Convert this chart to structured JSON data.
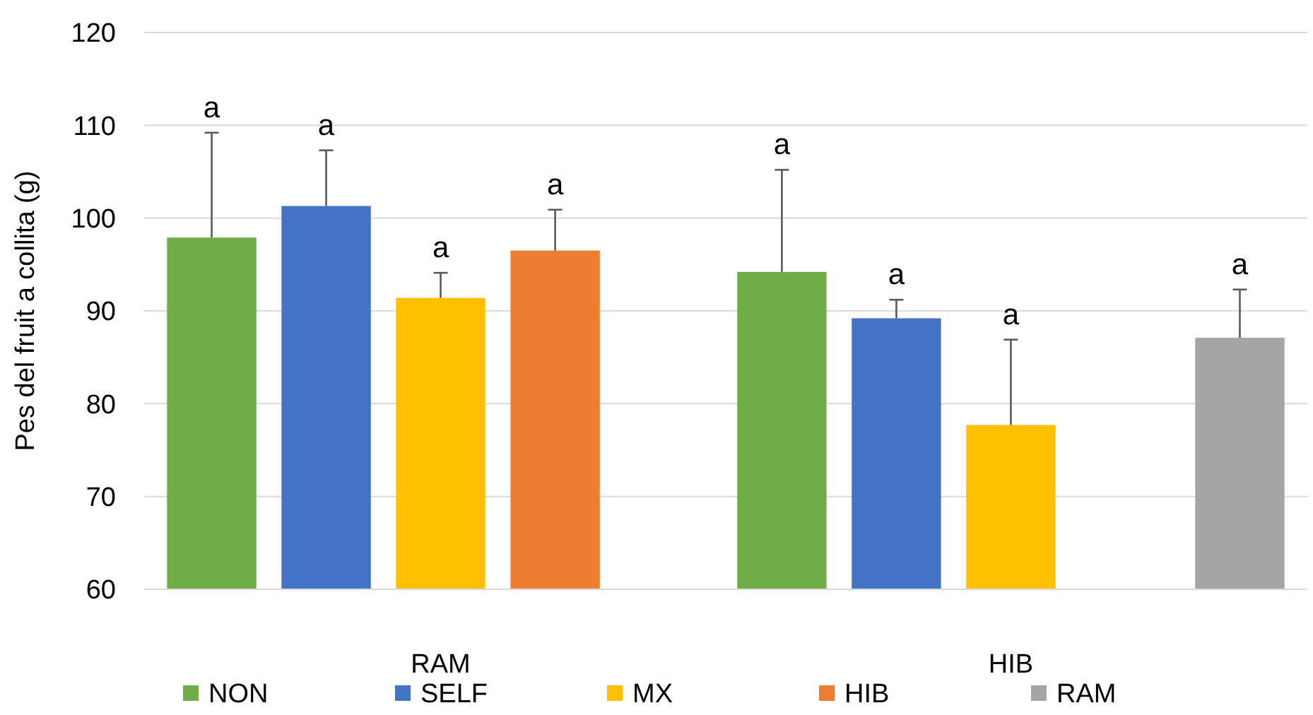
{
  "chart_data": {
    "type": "bar",
    "ylabel": "Pes del fruit a collita (g)",
    "categories": [
      "RAM",
      "HIB"
    ],
    "series": [
      {
        "name": "NON",
        "color": "#70ad47",
        "values": [
          97.9,
          94.2
        ],
        "errors": [
          [
            97.9,
            109.2
          ],
          [
            94.2,
            105.2
          ]
        ]
      },
      {
        "name": "SELF",
        "color": "#4472c4",
        "values": [
          101.3,
          89.2
        ],
        "errors": [
          [
            101.3,
            107.3
          ],
          [
            89.2,
            91.2
          ]
        ]
      },
      {
        "name": "MX",
        "color": "#ffc000",
        "values": [
          91.4,
          77.7
        ],
        "errors": [
          [
            91.4,
            94.1
          ],
          [
            77.7,
            86.9
          ]
        ]
      },
      {
        "name": "HIB",
        "color": "#ed7d31",
        "values": [
          96.5,
          null
        ],
        "errors": [
          [
            96.5,
            100.9
          ],
          null
        ]
      },
      {
        "name": "RAM",
        "color": "#a5a5a5",
        "values": [
          null,
          87.1
        ],
        "errors": [
          null,
          [
            87.1,
            92.3
          ]
        ]
      }
    ],
    "annotations": [
      "a",
      "a",
      "a",
      "a",
      "a",
      "a",
      "a",
      "a"
    ],
    "ylim": [
      60,
      120
    ],
    "yticks": [
      60,
      70,
      80,
      90,
      100,
      110,
      120
    ],
    "grid": "y",
    "legend": "bottom"
  }
}
